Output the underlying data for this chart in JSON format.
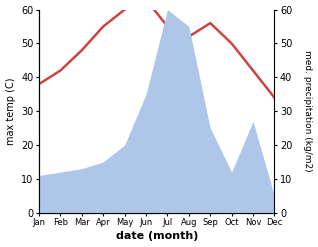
{
  "months": [
    "Jan",
    "Feb",
    "Mar",
    "Apr",
    "May",
    "Jun",
    "Jul",
    "Aug",
    "Sep",
    "Oct",
    "Nov",
    "Dec"
  ],
  "temperature": [
    38,
    42,
    48,
    55,
    60,
    63,
    55,
    52,
    56,
    50,
    42,
    34
  ],
  "precipitation": [
    11,
    12,
    13,
    15,
    20,
    35,
    60,
    55,
    25,
    12,
    27,
    5
  ],
  "temp_color": "#cc4444",
  "precip_color": "#aec6e8",
  "xlabel": "date (month)",
  "ylabel_left": "max temp (C)",
  "ylabel_right": "med. precipitation (kg/m2)",
  "ylim_left": [
    0,
    60
  ],
  "ylim_right": [
    0,
    60
  ],
  "yticks_left": [
    0,
    10,
    20,
    30,
    40,
    50,
    60
  ],
  "yticks_right": [
    0,
    10,
    20,
    30,
    40,
    50,
    60
  ],
  "background_color": "#ffffff",
  "temp_linewidth": 1.8
}
